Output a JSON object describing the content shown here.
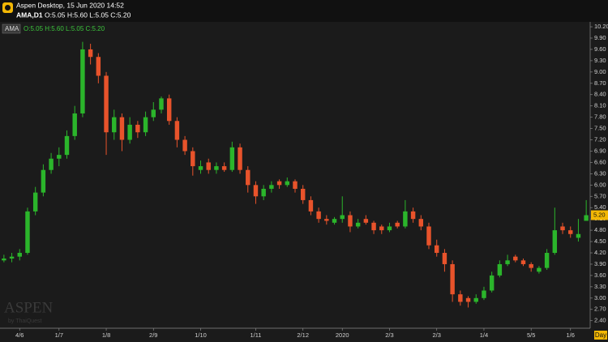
{
  "chart_data": {
    "type": "candlestick",
    "title": "Aspen Desktop, 15 Jun 2020 14:52",
    "symbol": "AMA,D1",
    "ohlc_label": "O:5.05 H:5.60 L:5.05 C:5.20",
    "indicator_label": "AMA",
    "period_label": "Day",
    "watermark": "ASPEN",
    "watermark_sub": "by ThaiQuest",
    "current_price": {
      "value": 5.2,
      "label": "5.20"
    },
    "up_color": "#2bb52b",
    "down_color": "#e8532b",
    "categories": [
      null,
      null,
      "4/6",
      null,
      null,
      null,
      null,
      "1/7",
      null,
      null,
      null,
      null,
      null,
      "1/8",
      null,
      null,
      null,
      null,
      null,
      "2/9",
      null,
      null,
      null,
      null,
      null,
      "1/10",
      null,
      null,
      null,
      null,
      null,
      null,
      "1/11",
      null,
      null,
      null,
      null,
      null,
      "2/12",
      null,
      null,
      null,
      null,
      "2020",
      null,
      null,
      null,
      null,
      null,
      "2/3",
      null,
      null,
      null,
      null,
      null,
      "2/3",
      null,
      null,
      null,
      null,
      null,
      "1/4",
      null,
      null,
      null,
      null,
      null,
      "5/5",
      null,
      null,
      null,
      null,
      "1/6",
      null,
      null
    ],
    "series": [
      {
        "name": "AMA",
        "open": [
          4.0,
          4.05,
          4.1,
          4.2,
          5.3,
          5.8,
          6.4,
          6.7,
          6.8,
          7.3,
          7.9,
          9.6,
          9.4,
          8.9,
          7.4,
          7.8,
          7.2,
          7.6,
          7.4,
          7.8,
          8.0,
          8.3,
          7.7,
          7.2,
          6.9,
          6.4,
          6.6,
          6.4,
          6.5,
          6.4,
          7.0,
          6.4,
          6.0,
          5.7,
          5.9,
          6.1,
          6.0,
          6.1,
          5.9,
          5.6,
          5.3,
          5.1,
          5.0,
          5.1,
          5.2,
          4.9,
          5.1,
          5.0,
          4.9,
          4.8,
          5.0,
          4.9,
          5.3,
          5.1,
          4.9,
          4.4,
          4.2,
          3.9,
          3.1,
          3.0,
          2.9,
          3.0,
          3.2,
          3.6,
          3.9,
          4.1,
          4.0,
          3.9,
          3.7,
          3.8,
          4.2,
          4.9,
          4.8,
          4.6,
          5.05
        ],
        "high": [
          4.15,
          4.2,
          4.3,
          5.4,
          5.95,
          6.55,
          6.85,
          7.0,
          7.45,
          8.1,
          9.8,
          9.75,
          9.5,
          9.0,
          8.0,
          7.9,
          7.8,
          7.7,
          7.95,
          8.2,
          8.35,
          8.4,
          7.8,
          7.3,
          7.0,
          6.65,
          6.7,
          6.6,
          6.6,
          7.15,
          7.1,
          6.5,
          6.1,
          6.0,
          6.1,
          6.15,
          6.2,
          6.15,
          6.0,
          5.7,
          5.4,
          5.2,
          5.15,
          5.7,
          5.3,
          5.1,
          5.2,
          5.05,
          4.95,
          5.0,
          5.05,
          5.6,
          5.4,
          5.2,
          5.0,
          4.55,
          4.3,
          4.0,
          3.2,
          3.05,
          3.1,
          3.3,
          3.7,
          4.0,
          4.15,
          4.15,
          4.05,
          3.95,
          3.85,
          4.3,
          5.4,
          5.0,
          4.9,
          5.1,
          5.6
        ],
        "low": [
          3.95,
          3.95,
          4.0,
          4.15,
          5.2,
          5.7,
          6.3,
          6.5,
          6.7,
          7.2,
          7.8,
          9.2,
          8.7,
          6.8,
          7.2,
          6.9,
          7.1,
          7.25,
          7.3,
          7.7,
          7.9,
          7.6,
          7.0,
          6.8,
          6.25,
          6.3,
          6.3,
          6.3,
          6.35,
          6.35,
          6.3,
          5.8,
          5.5,
          5.6,
          5.8,
          5.9,
          5.95,
          5.8,
          5.5,
          5.2,
          5.0,
          4.95,
          4.95,
          5.0,
          4.75,
          4.85,
          4.95,
          4.7,
          4.7,
          4.75,
          4.85,
          4.85,
          5.0,
          4.8,
          4.3,
          4.1,
          3.7,
          2.9,
          2.8,
          2.75,
          2.85,
          2.95,
          3.15,
          3.55,
          3.85,
          3.95,
          3.85,
          3.7,
          3.65,
          3.75,
          4.15,
          4.7,
          4.6,
          4.5,
          5.05
        ],
        "close": [
          4.05,
          4.1,
          4.2,
          5.3,
          5.8,
          6.4,
          6.7,
          6.8,
          7.3,
          7.9,
          9.6,
          9.4,
          8.9,
          7.4,
          7.8,
          7.2,
          7.6,
          7.4,
          7.8,
          8.0,
          8.3,
          7.7,
          7.2,
          6.9,
          6.5,
          6.5,
          6.4,
          6.5,
          6.4,
          7.0,
          6.4,
          6.0,
          5.7,
          5.9,
          6.0,
          6.0,
          6.1,
          5.9,
          5.6,
          5.3,
          5.1,
          5.05,
          5.1,
          5.2,
          4.9,
          5.0,
          5.0,
          4.8,
          4.8,
          4.9,
          4.9,
          5.3,
          5.1,
          4.9,
          4.4,
          4.2,
          3.9,
          3.1,
          2.9,
          2.9,
          3.0,
          3.2,
          3.6,
          3.9,
          4.0,
          4.0,
          3.9,
          3.8,
          3.8,
          4.2,
          4.8,
          4.8,
          4.7,
          4.7,
          5.2
        ]
      }
    ],
    "ylim": [
      2.2,
      10.33
    ],
    "yticks": [
      {
        "value": 2.4,
        "label": "2.40"
      },
      {
        "value": 2.7,
        "label": "2.70"
      },
      {
        "value": 3,
        "label": "3.00"
      },
      {
        "value": 3.3,
        "label": "3.30"
      },
      {
        "value": 3.6,
        "label": "3.60"
      },
      {
        "value": 3.9,
        "label": "3.90"
      },
      {
        "value": 4.2,
        "label": "4.20"
      },
      {
        "value": 4.5,
        "label": "4.50"
      },
      {
        "value": 4.8,
        "label": "4.80"
      },
      {
        "value": 5.1,
        "label": "5.10"
      },
      {
        "value": 5.4,
        "label": "5.40"
      },
      {
        "value": 5.7,
        "label": "5.70"
      },
      {
        "value": 6,
        "label": "6.00"
      },
      {
        "value": 6.3,
        "label": "6.30"
      },
      {
        "value": 6.6,
        "label": "6.60"
      },
      {
        "value": 6.9,
        "label": "6.90"
      },
      {
        "value": 7.2,
        "label": "7.20"
      },
      {
        "value": 7.5,
        "label": "7.50"
      },
      {
        "value": 7.8,
        "label": "7.80"
      },
      {
        "value": 8.1,
        "label": "8.10"
      },
      {
        "value": 8.4,
        "label": "8.40"
      },
      {
        "value": 8.7,
        "label": "8.70"
      },
      {
        "value": 9,
        "label": "9.00"
      },
      {
        "value": 9.3,
        "label": "9.30"
      },
      {
        "value": 9.6,
        "label": "9.60"
      },
      {
        "value": 9.9,
        "label": "9.90"
      },
      {
        "value": 10.2,
        "label": "10.20"
      }
    ],
    "grid": false
  }
}
